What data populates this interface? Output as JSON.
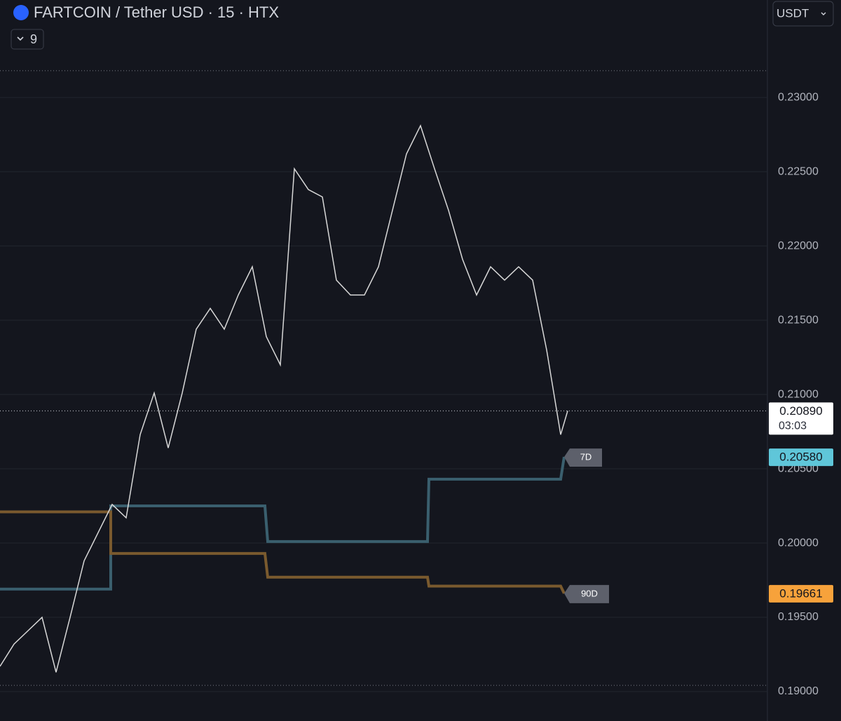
{
  "chart_data": {
    "type": "line",
    "title": "FARTCOIN / Tether USD · 15 · HTX",
    "currency": "USDT",
    "indicator_count": "9",
    "ylim": [
      0.18802,
      0.23656
    ],
    "xlim": [
      0,
      109.5
    ],
    "yticks": [
      {
        "value": 0.19,
        "label": "0.19000"
      },
      {
        "value": 0.195,
        "label": "0.19500"
      },
      {
        "value": 0.2,
        "label": "0.20000"
      },
      {
        "value": 0.205,
        "label": "0.20500"
      },
      {
        "value": 0.21,
        "label": "0.21000"
      },
      {
        "value": 0.215,
        "label": "0.21500"
      },
      {
        "value": 0.22,
        "label": "0.22000"
      },
      {
        "value": 0.225,
        "label": "0.22500"
      },
      {
        "value": 0.23,
        "label": "0.23000"
      }
    ],
    "grid": true,
    "x": [
      0,
      2,
      4,
      6,
      8,
      10,
      12,
      14,
      16,
      18,
      20,
      22,
      24,
      26,
      28,
      30,
      32,
      34,
      36,
      38,
      40,
      42,
      44,
      46,
      48,
      50,
      52,
      54,
      56,
      58,
      60,
      62,
      64,
      66,
      68,
      70,
      72,
      74,
      76,
      78,
      80,
      81
    ],
    "values": [
      0.1917,
      0.1932,
      0.1941,
      0.195,
      0.1913,
      0.195,
      0.1988,
      0.2007,
      0.2026,
      0.2017,
      0.2073,
      0.2101,
      0.2064,
      0.2101,
      0.2144,
      0.2158,
      0.2144,
      0.2167,
      0.2186,
      0.2139,
      0.212,
      0.2252,
      0.2238,
      0.2233,
      0.2177,
      0.2167,
      0.2167,
      0.2186,
      0.2224,
      0.2262,
      0.2281,
      0.2252,
      0.2224,
      0.2191,
      0.2167,
      0.2186,
      0.2177,
      0.2186,
      0.2177,
      0.213,
      0.2073,
      0.2089
    ],
    "color": "#d8d8d8",
    "price_label": {
      "value": 0.2089,
      "label": "0.20890",
      "countdown": "03:03"
    },
    "dotted_levels": [
      0.2318,
      0.19042
    ],
    "series": [
      {
        "name": "7D",
        "color": "#3a5f6e",
        "label_color": "#5fc6d9",
        "x": [
          0,
          15.8,
          15.8,
          37.8,
          38.2,
          61,
          61.2,
          80,
          80.5
        ],
        "values": [
          0.1969,
          0.1969,
          0.2025,
          0.2025,
          0.2001,
          0.2001,
          0.2043,
          0.2043,
          0.2058
        ],
        "last_label": "0.20580"
      },
      {
        "name": "90D",
        "color": "#7a5a2e",
        "label_color": "#f7a23b",
        "x": [
          0,
          15.8,
          15.8,
          37.8,
          38.2,
          61,
          61.2,
          80,
          80.5
        ],
        "values": [
          0.2021,
          0.2021,
          0.1993,
          0.1993,
          0.1977,
          0.1977,
          0.1971,
          0.1971,
          0.19661
        ],
        "last_label": "0.19661"
      }
    ]
  }
}
